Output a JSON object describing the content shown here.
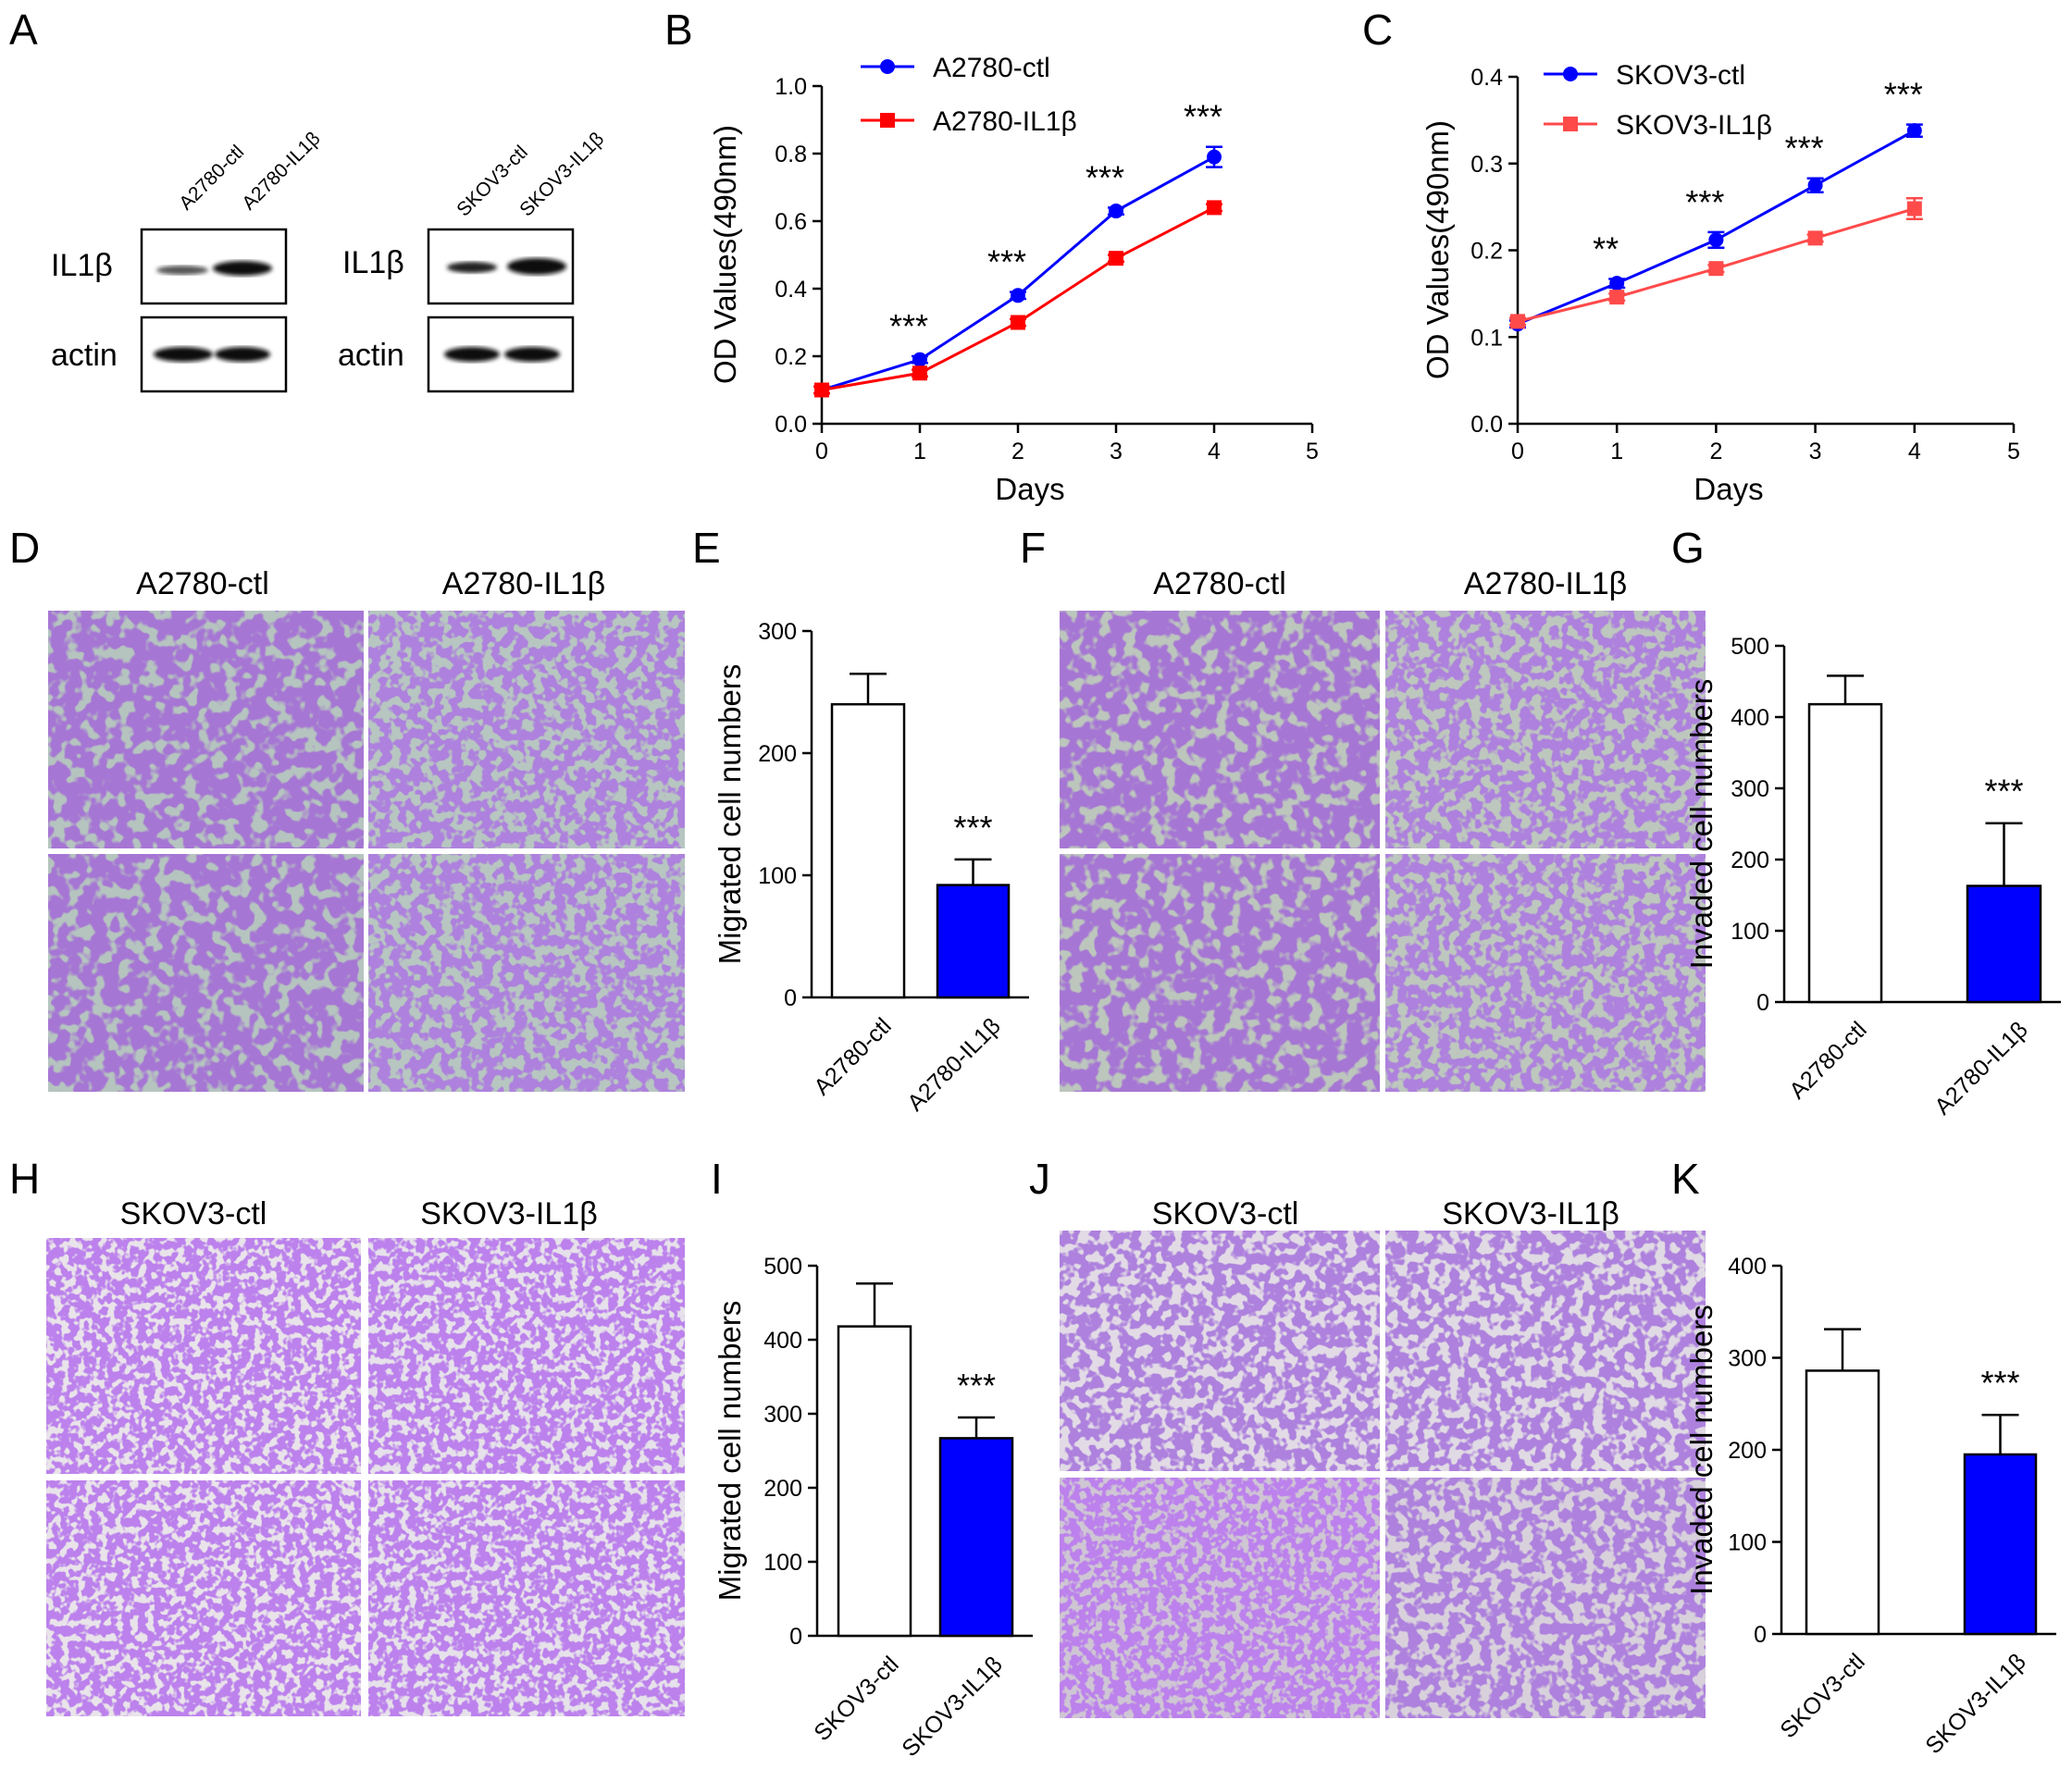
{
  "panels": {
    "A": {
      "letter": "A",
      "blots": [
        {
          "lanes": [
            "A2780-ctl",
            "A2780-IL1β"
          ],
          "rows": [
            "IL1β",
            "actin"
          ]
        },
        {
          "lanes": [
            "SKOV3-ctl",
            "SKOV3-IL1β"
          ],
          "rows": [
            "IL1β",
            "actin"
          ]
        }
      ]
    },
    "D": {
      "letter": "D",
      "titles": [
        "A2780-ctl",
        "A2780-IL1β"
      ]
    },
    "F": {
      "letter": "F",
      "titles": [
        "A2780-ctl",
        "A2780-IL1β"
      ]
    },
    "H": {
      "letter": "H",
      "titles": [
        "SKOV3-ctl",
        "SKOV3-IL1β"
      ]
    },
    "J": {
      "letter": "J",
      "titles": [
        "SKOV3-ctl",
        "SKOV3-IL1β"
      ]
    }
  },
  "colors": {
    "ctl_series": "#0000ff",
    "il1b_series": "#ff0000",
    "il1b_series_C": "#ff4a4a",
    "bar_ctl": "#ffffff",
    "bar_il1b": "#0000ff",
    "stain": "#7a3fc4"
  },
  "chart_data": [
    {
      "panel": "B",
      "type": "line",
      "xlabel": "Days",
      "ylabel": "OD Values(490nm)",
      "xlim": [
        0,
        5
      ],
      "ylim": [
        0,
        1.0
      ],
      "xticks": [
        0,
        1,
        2,
        3,
        4,
        5
      ],
      "yticks": [
        0.0,
        0.2,
        0.4,
        0.6,
        0.8,
        1.0
      ],
      "ytick_labels": [
        "0.0",
        "0.2",
        "0.4",
        "0.6",
        "0.8",
        "1.0"
      ],
      "x": [
        0,
        1,
        2,
        3,
        4
      ],
      "series": [
        {
          "name": "A2780-ctl",
          "values": [
            0.1,
            0.19,
            0.38,
            0.63,
            0.79
          ],
          "errors": [
            0.01,
            0.01,
            0.01,
            0.01,
            0.03
          ],
          "marker": "circle"
        },
        {
          "name": "A2780-IL1β",
          "values": [
            0.1,
            0.15,
            0.3,
            0.49,
            0.64
          ],
          "errors": [
            0.01,
            0.01,
            0.01,
            0.01,
            0.01
          ],
          "marker": "square"
        }
      ],
      "annotations": [
        {
          "x": 1,
          "text": "***"
        },
        {
          "x": 2,
          "text": "***"
        },
        {
          "x": 3,
          "text": "***"
        },
        {
          "x": 4,
          "text": "***"
        }
      ],
      "legend": "top-left"
    },
    {
      "panel": "C",
      "type": "line",
      "xlabel": "Days",
      "ylabel": "OD Values(490nm)",
      "xlim": [
        0,
        5
      ],
      "ylim": [
        0,
        0.4
      ],
      "xticks": [
        0,
        1,
        2,
        3,
        4,
        5
      ],
      "yticks": [
        0.0,
        0.1,
        0.2,
        0.3,
        0.4
      ],
      "ytick_labels": [
        "0.0",
        "0.1",
        "0.2",
        "0.3",
        "0.4"
      ],
      "x": [
        0,
        1,
        2,
        3,
        4
      ],
      "series": [
        {
          "name": "SKOV3-ctl",
          "values": [
            0.115,
            0.162,
            0.212,
            0.275,
            0.338
          ],
          "errors": [
            0.004,
            0.005,
            0.009,
            0.008,
            0.007
          ],
          "marker": "circle"
        },
        {
          "name": "SKOV3-IL1β",
          "values": [
            0.118,
            0.146,
            0.179,
            0.214,
            0.248
          ],
          "errors": [
            0.004,
            0.004,
            0.004,
            0.004,
            0.012
          ],
          "marker": "square"
        }
      ],
      "annotations": [
        {
          "x": 1,
          "text": "**"
        },
        {
          "x": 2,
          "text": "***"
        },
        {
          "x": 3,
          "text": "***"
        },
        {
          "x": 4,
          "text": "***"
        }
      ],
      "legend": "top-left"
    },
    {
      "panel": "E",
      "type": "bar",
      "ylabel": "Migrated cell numbers",
      "categories": [
        "A2780-ctl",
        "A2780-IL1β"
      ],
      "values": [
        240,
        92
      ],
      "errors": [
        25,
        21
      ],
      "ylim": [
        0,
        300
      ],
      "yticks": [
        0,
        100,
        200,
        300
      ],
      "annotations": [
        {
          "index": 1,
          "text": "***"
        }
      ]
    },
    {
      "panel": "G",
      "type": "bar",
      "ylabel": "Invaded cell numbers",
      "categories": [
        "A2780-ctl",
        "A2780-IL1β"
      ],
      "values": [
        418,
        163
      ],
      "errors": [
        40,
        88
      ],
      "ylim": [
        0,
        500
      ],
      "yticks": [
        0,
        100,
        200,
        300,
        400,
        500
      ],
      "annotations": [
        {
          "index": 1,
          "text": "***"
        }
      ]
    },
    {
      "panel": "I",
      "type": "bar",
      "ylabel": "Migrated cell numbers",
      "categories": [
        "SKOV3-ctl",
        "SKOV3-IL1β"
      ],
      "values": [
        418,
        267
      ],
      "errors": [
        58,
        28
      ],
      "ylim": [
        0,
        500
      ],
      "yticks": [
        0,
        100,
        200,
        300,
        400,
        500
      ],
      "annotations": [
        {
          "index": 1,
          "text": "***"
        }
      ]
    },
    {
      "panel": "K",
      "type": "bar",
      "ylabel": "Invaded cell numbers",
      "categories": [
        "SKOV3-ctl",
        "SKOV3-IL1β"
      ],
      "values": [
        286,
        195
      ],
      "errors": [
        45,
        43
      ],
      "ylim": [
        0,
        400
      ],
      "yticks": [
        0,
        100,
        200,
        300,
        400
      ],
      "annotations": [
        {
          "index": 1,
          "text": "***"
        }
      ]
    }
  ]
}
